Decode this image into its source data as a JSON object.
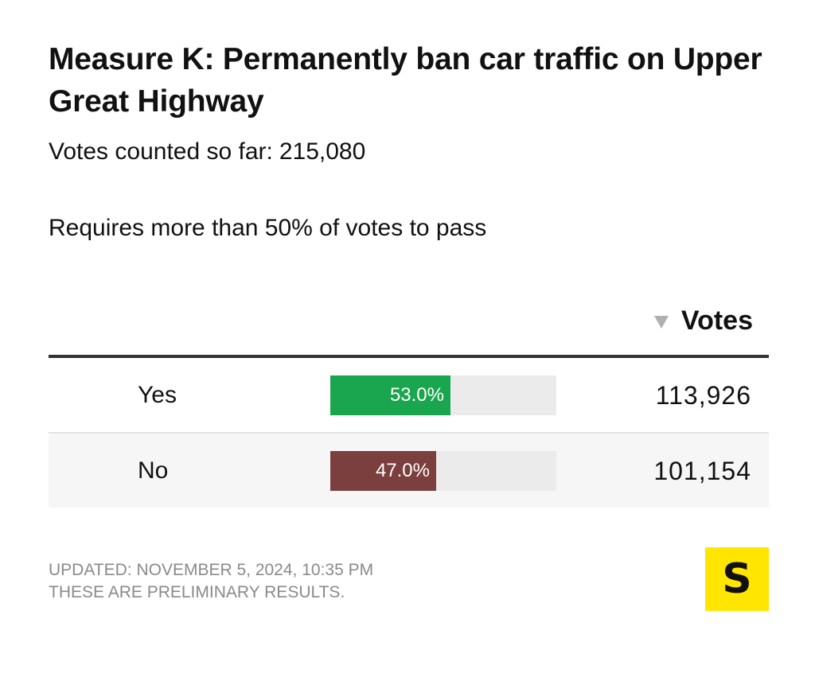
{
  "header": {
    "title": "Measure K: Permanently ban car traffic on Upper Great Highway",
    "votes_counted_label": "Votes counted so far:",
    "votes_counted_value": "215,080",
    "requirement": "Requires more than 50% of votes to pass"
  },
  "table": {
    "column_header": "Votes",
    "sort_icon": "triangle-down-icon"
  },
  "chart_data": {
    "type": "bar",
    "title": "Measure K: Permanently ban car traffic on Upper Great Highway",
    "categories": [
      "Yes",
      "No"
    ],
    "values": [
      53.0,
      47.0
    ],
    "value_labels": [
      "53.0%",
      "47.0%"
    ],
    "votes": [
      "113,926",
      "101,154"
    ],
    "colors": [
      "#1aa64e",
      "#7b3f3d"
    ],
    "xlabel": "",
    "ylabel": "",
    "ylim": [
      0,
      100
    ],
    "track_color": "#ebebeb"
  },
  "footer": {
    "updated": "UPDATED: NOVEMBER 5, 2024, 10:35 PM",
    "note": "THESE ARE PRELIMINARY RESULTS.",
    "logo_text": "S",
    "logo_color": "#ffe500"
  }
}
